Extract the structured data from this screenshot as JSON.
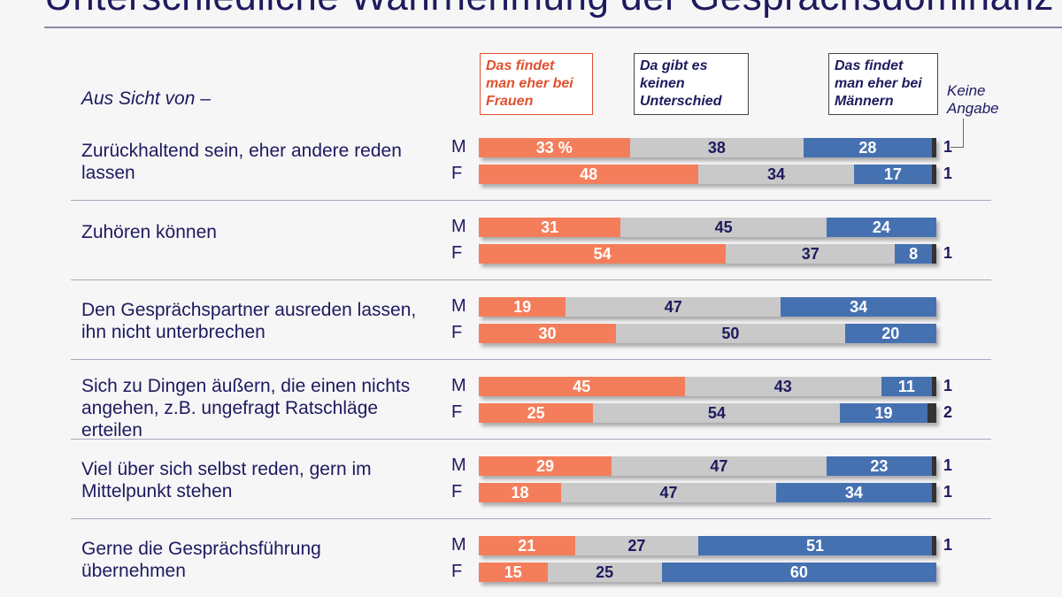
{
  "title": "Unterschiedliche Wahrnehmung der Gesprächsdominanz",
  "chart_data": {
    "type": "bar",
    "stacked": true,
    "orientation": "horizontal",
    "title": "Unterschiedliche Wahrnehmung der Gesprächsdominanz",
    "subtitle": "Aus Sicht von –",
    "unit": "%",
    "xlim": [
      0,
      100
    ],
    "colors": [
      "#f47e5b",
      "#c9c9c9",
      "#4671b1",
      "#333333"
    ],
    "series_names": [
      "Das findet man eher bei Frauen",
      "Da gibt es keinen Unterschied",
      "Das findet man eher bei Männern",
      "Keine Angabe"
    ],
    "groups": [
      "M",
      "F"
    ],
    "categories": [
      {
        "label": "Zurückhaltend sein, eher andere reden lassen",
        "M": [
          33,
          38,
          28,
          1
        ],
        "F": [
          48,
          34,
          17,
          1
        ]
      },
      {
        "label": "Zuhören können",
        "M": [
          31,
          45,
          24,
          null
        ],
        "F": [
          54,
          37,
          8,
          1
        ]
      },
      {
        "label": "Den Gesprächspartner ausreden lassen, ihn nicht unterbrechen",
        "M": [
          19,
          47,
          34,
          null
        ],
        "F": [
          30,
          50,
          20,
          null
        ]
      },
      {
        "label": "Sich zu Dingen äußern, die einen nichts angehen, z.B. ungefragt Ratschläge erteilen",
        "M": [
          45,
          43,
          11,
          1
        ],
        "F": [
          25,
          54,
          19,
          2
        ]
      },
      {
        "label": "Viel über sich selbst reden, gern im Mittelpunkt stehen",
        "M": [
          29,
          47,
          23,
          1
        ],
        "F": [
          18,
          47,
          34,
          1
        ]
      },
      {
        "label": "Gerne die Gesprächsführung übernehmen",
        "M": [
          21,
          27,
          51,
          1
        ],
        "F": [
          15,
          25,
          60,
          null
        ]
      }
    ],
    "first_label_suffix": " %"
  }
}
